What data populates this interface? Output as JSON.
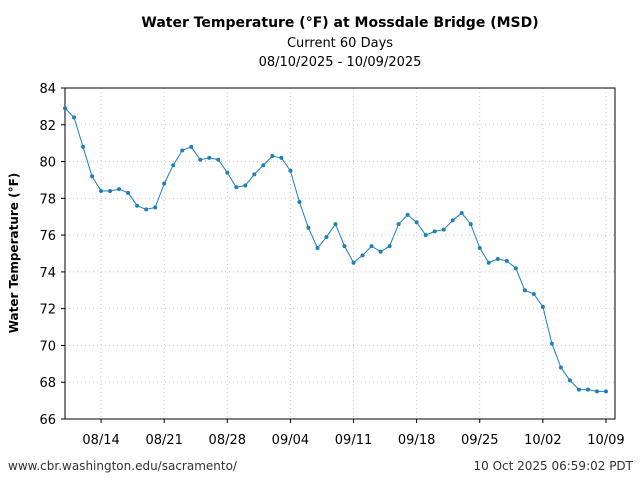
{
  "chart_data": {
    "type": "line",
    "title": "Water Temperature (°F) at Mossdale Bridge (MSD)",
    "subtitle": "Current 60 Days",
    "date_range": "08/10/2025 - 10/09/2025",
    "xlabel": "",
    "ylabel": "Water Temperature (°F)",
    "ylim": [
      66,
      84
    ],
    "yticks": [
      66,
      68,
      70,
      72,
      74,
      76,
      78,
      80,
      82,
      84
    ],
    "xlim": [
      "2025-08-10",
      "2025-10-10"
    ],
    "xticks": [
      {
        "date": "2025-08-14",
        "label": "08/14"
      },
      {
        "date": "2025-08-21",
        "label": "08/21"
      },
      {
        "date": "2025-08-28",
        "label": "08/28"
      },
      {
        "date": "2025-09-04",
        "label": "09/04"
      },
      {
        "date": "2025-09-11",
        "label": "09/11"
      },
      {
        "date": "2025-09-18",
        "label": "09/18"
      },
      {
        "date": "2025-09-25",
        "label": "09/25"
      },
      {
        "date": "2025-10-02",
        "label": "10/02"
      },
      {
        "date": "2025-10-09",
        "label": "10/09"
      }
    ],
    "grid": true,
    "line_color": "#1f7fb8",
    "series": [
      {
        "x": [
          "2025-08-10",
          "2025-08-11",
          "2025-08-12",
          "2025-08-13",
          "2025-08-14",
          "2025-08-15",
          "2025-08-16",
          "2025-08-17",
          "2025-08-18",
          "2025-08-19",
          "2025-08-20",
          "2025-08-21",
          "2025-08-22",
          "2025-08-23",
          "2025-08-24",
          "2025-08-25",
          "2025-08-26",
          "2025-08-27",
          "2025-08-28",
          "2025-08-29",
          "2025-08-30",
          "2025-08-31",
          "2025-09-01",
          "2025-09-02",
          "2025-09-03",
          "2025-09-04",
          "2025-09-05",
          "2025-09-06",
          "2025-09-07",
          "2025-09-08",
          "2025-09-09",
          "2025-09-10",
          "2025-09-11",
          "2025-09-12",
          "2025-09-13",
          "2025-09-14",
          "2025-09-15",
          "2025-09-16",
          "2025-09-17",
          "2025-09-18",
          "2025-09-19",
          "2025-09-20",
          "2025-09-21",
          "2025-09-22",
          "2025-09-23",
          "2025-09-24",
          "2025-09-25",
          "2025-09-26",
          "2025-09-27",
          "2025-09-28",
          "2025-09-29",
          "2025-09-30",
          "2025-10-01",
          "2025-10-02",
          "2025-10-03",
          "2025-10-04",
          "2025-10-05",
          "2025-10-06",
          "2025-10-07",
          "2025-10-08",
          "2025-10-09"
        ],
        "values": [
          82.9,
          82.4,
          80.8,
          79.2,
          78.4,
          78.4,
          78.5,
          78.3,
          77.6,
          77.4,
          77.5,
          78.8,
          79.8,
          80.6,
          80.8,
          80.1,
          80.2,
          80.1,
          79.4,
          78.6,
          78.7,
          79.3,
          79.8,
          80.3,
          80.2,
          79.5,
          77.8,
          76.4,
          75.3,
          75.9,
          76.6,
          75.4,
          74.5,
          74.9,
          75.4,
          75.1,
          75.4,
          76.6,
          77.1,
          76.7,
          76.0,
          76.2,
          76.3,
          76.8,
          77.2,
          76.6,
          75.3,
          74.5,
          74.7,
          74.6,
          74.2,
          73.0,
          72.8,
          72.1,
          70.1,
          68.8,
          68.1,
          67.6,
          67.6,
          67.5,
          67.5
        ]
      }
    ]
  },
  "footer": {
    "source_url": "www.cbr.washington.edu/sacramento/",
    "timestamp": "10 Oct 2025 06:59:02 PDT"
  }
}
